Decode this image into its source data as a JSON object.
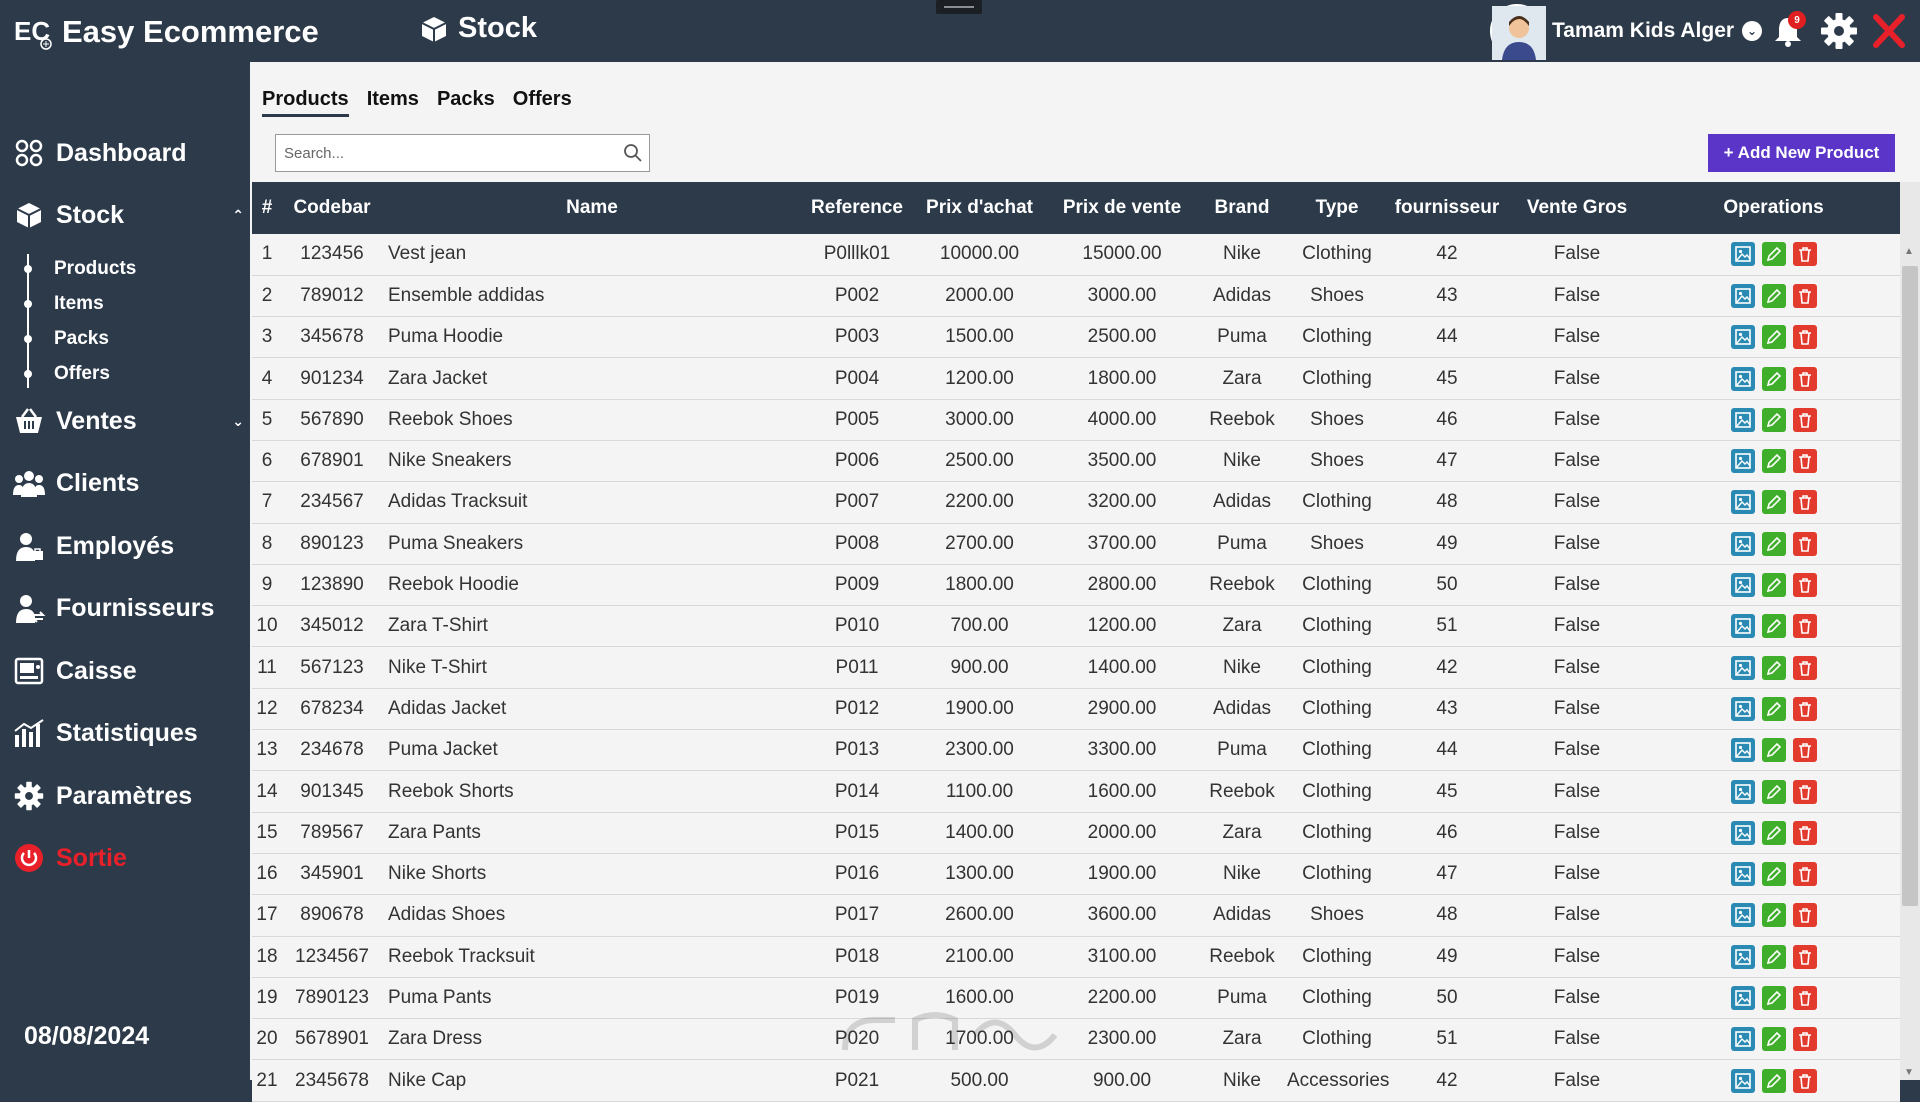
{
  "app": {
    "title": "Easy Ecommerce",
    "logo_text": "EC",
    "section_title": "Stock"
  },
  "user": {
    "name": "Tamam Kids Alger",
    "notifications": "9"
  },
  "sidebar": {
    "items": [
      {
        "label": "Dashboard",
        "icon": "dashboard-icon"
      },
      {
        "label": "Stock",
        "icon": "box-icon"
      },
      {
        "label": "Ventes",
        "icon": "basket-icon"
      },
      {
        "label": "Clients",
        "icon": "users-icon"
      },
      {
        "label": "Employés",
        "icon": "employee-icon"
      },
      {
        "label": "Fournisseurs",
        "icon": "supplier-icon"
      },
      {
        "label": "Caisse",
        "icon": "cash-register-icon"
      },
      {
        "label": "Statistiques",
        "icon": "chart-icon"
      },
      {
        "label": "Paramètres",
        "icon": "gear-icon"
      },
      {
        "label": "Sortie",
        "icon": "power-icon"
      }
    ],
    "stock_sub": [
      "Products",
      "Items",
      "Packs",
      "Offers"
    ],
    "date": "08/08/2024"
  },
  "tabs": [
    "Products",
    "Items",
    "Packs",
    "Offers"
  ],
  "search": {
    "placeholder": "Search..."
  },
  "add_button": "+ Add New Product",
  "table": {
    "headers": [
      "#",
      "Codebar",
      "Name",
      "Reference",
      "Prix d'achat",
      "Prix de vente",
      "Brand",
      "Type",
      "fournisseur",
      "Vente Gros",
      "Operations"
    ],
    "rows": [
      [
        "1",
        "123456",
        "Vest jean",
        "P0lllk01",
        "10000.00",
        "15000.00",
        "Nike",
        "Clothing",
        "42",
        "False"
      ],
      [
        "2",
        "789012",
        "Ensemble addidas",
        "P002",
        "2000.00",
        "3000.00",
        "Adidas",
        "Shoes",
        "43",
        "False"
      ],
      [
        "3",
        "345678",
        "Puma Hoodie",
        "P003",
        "1500.00",
        "2500.00",
        "Puma",
        "Clothing",
        "44",
        "False"
      ],
      [
        "4",
        "901234",
        "Zara Jacket",
        "P004",
        "1200.00",
        "1800.00",
        "Zara",
        "Clothing",
        "45",
        "False"
      ],
      [
        "5",
        "567890",
        "Reebok Shoes",
        "P005",
        "3000.00",
        "4000.00",
        "Reebok",
        "Shoes",
        "46",
        "False"
      ],
      [
        "6",
        "678901",
        "Nike Sneakers",
        "P006",
        "2500.00",
        "3500.00",
        "Nike",
        "Shoes",
        "47",
        "False"
      ],
      [
        "7",
        "234567",
        "Adidas Tracksuit",
        "P007",
        "2200.00",
        "3200.00",
        "Adidas",
        "Clothing",
        "48",
        "False"
      ],
      [
        "8",
        "890123",
        "Puma Sneakers",
        "P008",
        "2700.00",
        "3700.00",
        "Puma",
        "Shoes",
        "49",
        "False"
      ],
      [
        "9",
        "123890",
        "Reebok Hoodie",
        "P009",
        "1800.00",
        "2800.00",
        "Reebok",
        "Clothing",
        "50",
        "False"
      ],
      [
        "10",
        "345012",
        "Zara T-Shirt",
        "P010",
        "700.00",
        "1200.00",
        "Zara",
        "Clothing",
        "51",
        "False"
      ],
      [
        "11",
        "567123",
        "Nike T-Shirt",
        "P011",
        "900.00",
        "1400.00",
        "Nike",
        "Clothing",
        "42",
        "False"
      ],
      [
        "12",
        "678234",
        "Adidas Jacket",
        "P012",
        "1900.00",
        "2900.00",
        "Adidas",
        "Clothing",
        "43",
        "False"
      ],
      [
        "13",
        "234678",
        "Puma Jacket",
        "P013",
        "2300.00",
        "3300.00",
        "Puma",
        "Clothing",
        "44",
        "False"
      ],
      [
        "14",
        "901345",
        "Reebok Shorts",
        "P014",
        "1100.00",
        "1600.00",
        "Reebok",
        "Clothing",
        "45",
        "False"
      ],
      [
        "15",
        "789567",
        "Zara Pants",
        "P015",
        "1400.00",
        "2000.00",
        "Zara",
        "Clothing",
        "46",
        "False"
      ],
      [
        "16",
        "345901",
        "Nike Shorts",
        "P016",
        "1300.00",
        "1900.00",
        "Nike",
        "Clothing",
        "47",
        "False"
      ],
      [
        "17",
        "890678",
        "Adidas Shoes",
        "P017",
        "2600.00",
        "3600.00",
        "Adidas",
        "Shoes",
        "48",
        "False"
      ],
      [
        "18",
        "1234567",
        "Reebok Tracksuit",
        "P018",
        "2100.00",
        "3100.00",
        "Reebok",
        "Clothing",
        "49",
        "False"
      ],
      [
        "19",
        "7890123",
        "Puma Pants",
        "P019",
        "1600.00",
        "2200.00",
        "Puma",
        "Clothing",
        "50",
        "False"
      ],
      [
        "20",
        "5678901",
        "Zara Dress",
        "P020",
        "1700.00",
        "2300.00",
        "Zara",
        "Clothing",
        "51",
        "False"
      ],
      [
        "21",
        "2345678",
        "Nike Cap",
        "P021",
        "500.00",
        "900.00",
        "Nike",
        "Accessories",
        "42",
        "False"
      ]
    ]
  },
  "colors": {
    "navy": "#2c3a4a",
    "accent": "#5a35c8",
    "danger": "#e23b2e",
    "success": "#3fae2a",
    "info": "#2a8ab3"
  }
}
